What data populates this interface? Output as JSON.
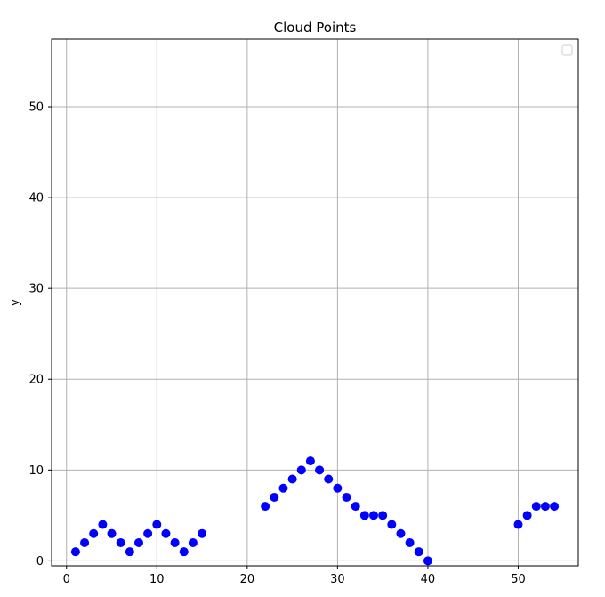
{
  "chart_data": {
    "type": "scatter",
    "title": "Cloud Points",
    "xlabel": "",
    "ylabel": "y",
    "xlim": [
      -1.65,
      56.65
    ],
    "ylim": [
      -0.55,
      57.45
    ],
    "x_ticks": [
      0,
      10,
      20,
      30,
      40,
      50
    ],
    "y_ticks": [
      0,
      10,
      20,
      30,
      40,
      50
    ],
    "grid": true,
    "legend": "top-right",
    "legend_entries": [],
    "marker_color": "#0000ff",
    "series": [
      {
        "x": [
          1,
          2,
          3,
          4,
          5,
          6,
          7,
          8,
          9,
          10,
          11,
          12,
          13,
          14,
          15,
          22,
          23,
          24,
          25,
          26,
          27,
          28,
          29,
          30,
          31,
          32,
          33,
          34,
          35,
          36,
          37,
          38,
          39,
          40,
          50,
          51,
          52,
          53,
          54
        ],
        "y": [
          1,
          2,
          3,
          4,
          3,
          2,
          1,
          2,
          3,
          4,
          3,
          2,
          1,
          2,
          3,
          6,
          7,
          8,
          9,
          10,
          11,
          10,
          9,
          8,
          7,
          6,
          5,
          5,
          5,
          4,
          3,
          2,
          1,
          0,
          4,
          5,
          6,
          6,
          6
        ]
      }
    ]
  }
}
